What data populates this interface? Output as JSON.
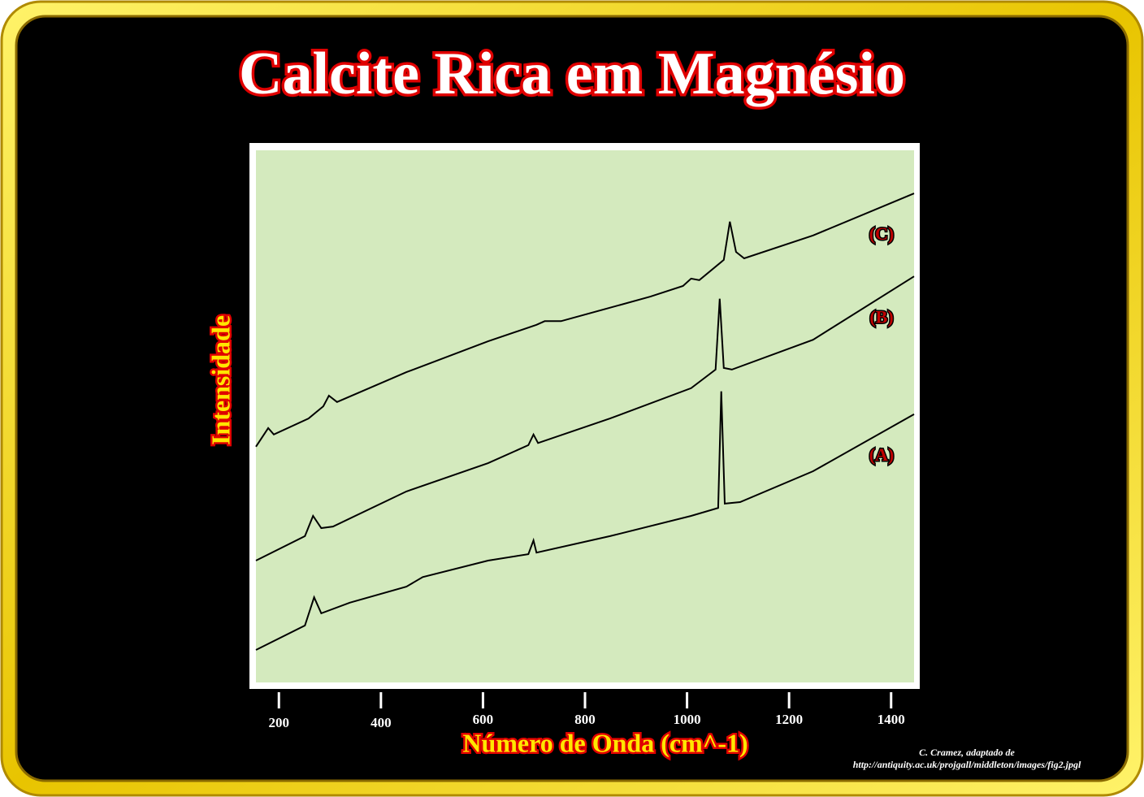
{
  "chart_data": {
    "type": "line",
    "title": "Calcite Rica em Magnésio",
    "x_label": "Número de Onda (cm^-1)",
    "y_label": "Intensidade",
    "source": [
      "C. Cramez, adaptado de",
      "http://antiquity.ac.uk/projgall/middleton/images/fig2.jpgl"
    ],
    "xlim": [
      155,
      1445
    ],
    "xticks": [
      200,
      400,
      600,
      800,
      1000,
      1200,
      1400
    ],
    "ylim": [
      0,
      100
    ],
    "series": [
      {
        "name": "(C)",
        "color": "#000000",
        "x": [
          155,
          179,
          190,
          258,
          287,
          298,
          314,
          450,
          610,
          705,
          721,
          753,
          928,
          992,
          1008,
          1024,
          1072,
          1084,
          1096,
          1112,
          1247,
          1445
        ],
        "values": [
          44.3,
          47.8,
          46.6,
          49.6,
          51.9,
          53.9,
          52.7,
          58.3,
          64.1,
          67.2,
          67.9,
          67.9,
          72.5,
          74.5,
          75.9,
          75.6,
          79.4,
          86.6,
          80.9,
          79.7,
          84.0,
          91.9
        ]
      },
      {
        "name": "(B)",
        "color": "#000000",
        "x": [
          155,
          251,
          267,
          283,
          306,
          450,
          610,
          689,
          699,
          708,
          849,
          1008,
          1056,
          1064,
          1072,
          1088,
          1247,
          1445
        ],
        "values": [
          22.9,
          27.5,
          31.3,
          29.0,
          29.3,
          35.9,
          41.2,
          44.6,
          46.6,
          45.0,
          49.6,
          55.3,
          58.8,
          72.1,
          59.1,
          58.8,
          64.4,
          76.3
        ]
      },
      {
        "name": "(A)",
        "color": "#000000",
        "x": [
          155,
          251,
          269,
          283,
          339,
          450,
          482,
          610,
          689,
          699,
          705,
          849,
          1008,
          1061,
          1067,
          1074,
          1104,
          1247,
          1445
        ],
        "values": [
          6.1,
          10.7,
          16.0,
          13.0,
          15.0,
          18.0,
          19.8,
          22.9,
          24.1,
          26.7,
          24.4,
          27.5,
          31.3,
          32.8,
          54.7,
          33.6,
          33.9,
          39.7,
          50.4
        ]
      }
    ]
  }
}
